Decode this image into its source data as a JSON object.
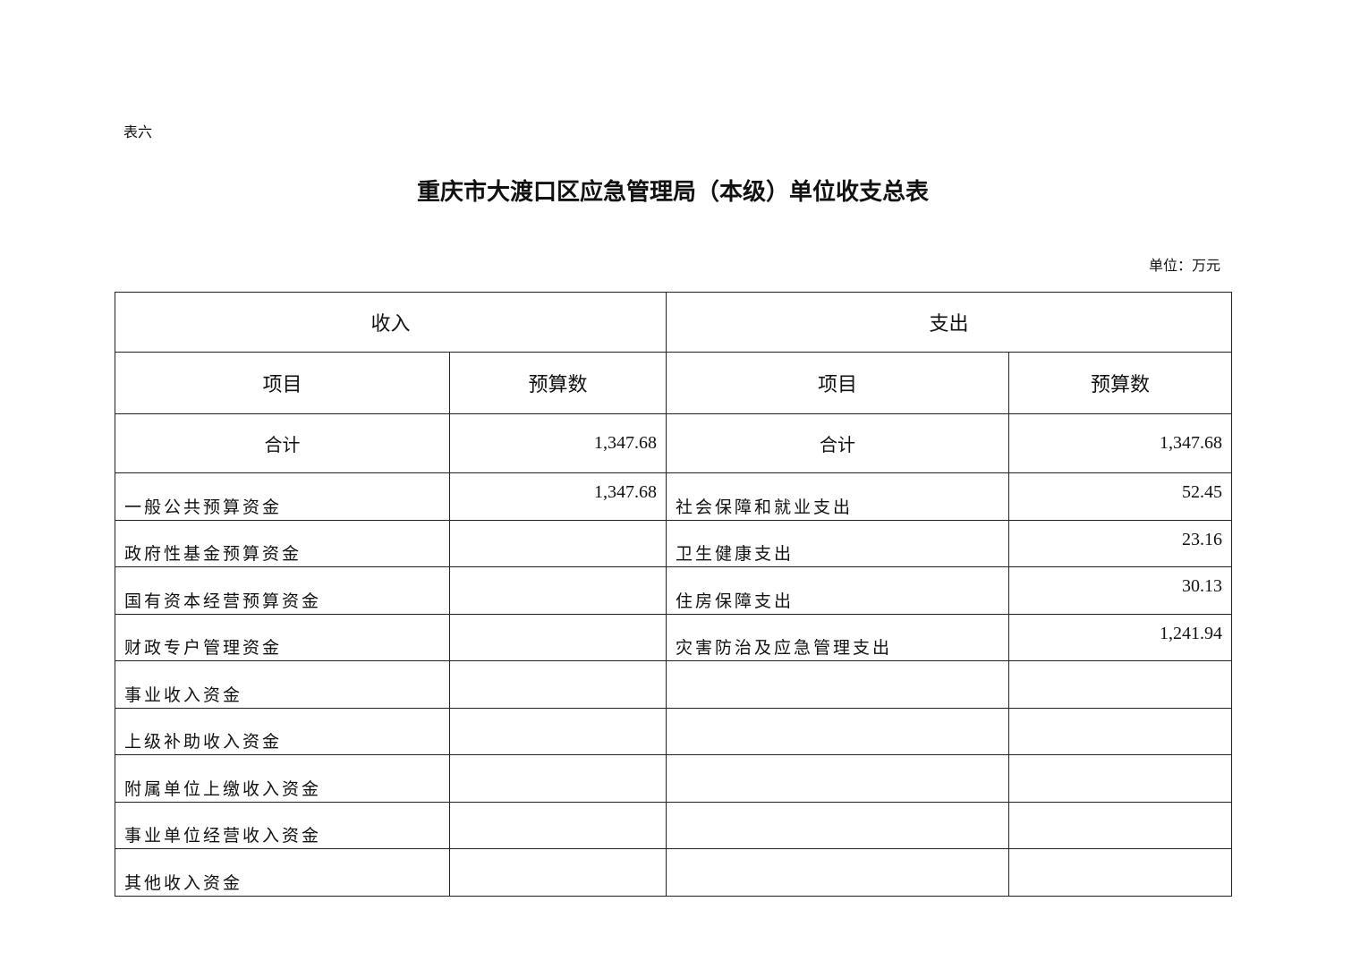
{
  "doc_label": "表六",
  "title": "重庆市大渡口区应急管理局（本级）单位收支总表",
  "unit": "单位：万元",
  "table": {
    "income_header": "收入",
    "expense_header": "支出",
    "col_item": "项目",
    "col_budget": "预算数",
    "total": {
      "income_label": "合计",
      "income_value": "1,347.68",
      "expense_label": "合计",
      "expense_value": "1,347.68"
    },
    "rows": [
      {
        "income_item": "一般公共预算资金",
        "income_value": "1,347.68",
        "expense_item": "社会保障和就业支出",
        "expense_value": "52.45"
      },
      {
        "income_item": "政府性基金预算资金",
        "income_value": "",
        "expense_item": "卫生健康支出",
        "expense_value": "23.16"
      },
      {
        "income_item": "国有资本经营预算资金",
        "income_value": "",
        "expense_item": "住房保障支出",
        "expense_value": "30.13"
      },
      {
        "income_item": "财政专户管理资金",
        "income_value": "",
        "expense_item": "灾害防治及应急管理支出",
        "expense_value": "1,241.94"
      },
      {
        "income_item": "事业收入资金",
        "income_value": "",
        "expense_item": "",
        "expense_value": ""
      },
      {
        "income_item": "上级补助收入资金",
        "income_value": "",
        "expense_item": "",
        "expense_value": ""
      },
      {
        "income_item": "附属单位上缴收入资金",
        "income_value": "",
        "expense_item": "",
        "expense_value": ""
      },
      {
        "income_item": "事业单位经营收入资金",
        "income_value": "",
        "expense_item": "",
        "expense_value": ""
      },
      {
        "income_item": "其他收入资金",
        "income_value": "",
        "expense_item": "",
        "expense_value": ""
      }
    ]
  }
}
